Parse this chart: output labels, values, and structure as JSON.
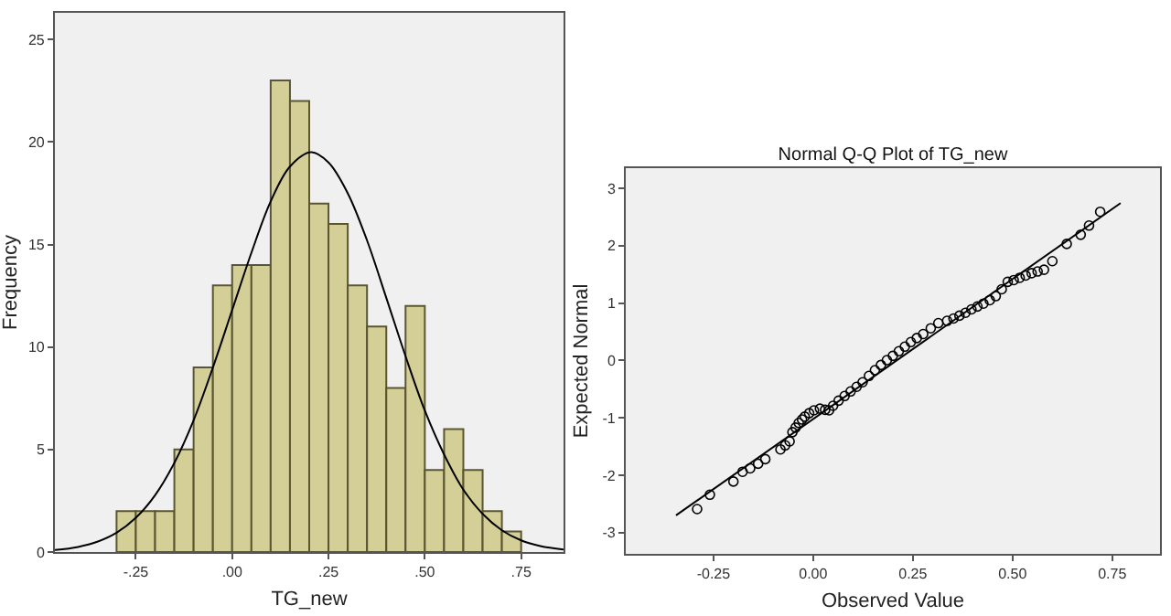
{
  "chart_data": [
    {
      "type": "histogram",
      "xlabel": "TG_new",
      "ylabel": "Frequency",
      "color": "#d3cf97",
      "bins": [
        -0.3,
        -0.25,
        -0.2,
        -0.15,
        -0.1,
        -0.05,
        0.0,
        0.05,
        0.1,
        0.15,
        0.2,
        0.25,
        0.3,
        0.35,
        0.4,
        0.45,
        0.5,
        0.55,
        0.6,
        0.65,
        0.7,
        0.75
      ],
      "values": [
        2,
        2,
        2,
        5,
        9,
        13,
        14,
        14,
        23,
        22,
        17,
        16,
        13,
        11,
        8,
        12,
        4,
        6,
        4,
        2,
        1
      ],
      "series": [
        {
          "type": "line",
          "color": "#000000",
          "x": [
            -0.46,
            -0.4,
            -0.35,
            -0.3,
            -0.25,
            -0.2,
            -0.15,
            -0.1,
            -0.05,
            0.0,
            0.05,
            0.1,
            0.15,
            0.205,
            0.25,
            0.3,
            0.35,
            0.4,
            0.45,
            0.5,
            0.55,
            0.6,
            0.65,
            0.7,
            0.75,
            0.8,
            0.86
          ],
          "values": [
            0.1,
            0.25,
            0.5,
            0.94,
            1.67,
            2.77,
            4.35,
            6.43,
            9.0,
            11.8,
            14.6,
            17.1,
            18.8,
            19.5,
            19.0,
            17.5,
            15.2,
            12.4,
            9.55,
            6.9,
            4.76,
            3.04,
            1.86,
            1.06,
            0.57,
            0.29,
            0.12
          ]
        }
      ],
      "xlim": [
        -0.46,
        0.86
      ],
      "ylim": [
        0,
        26.3
      ],
      "xticks": [
        {
          "value": -0.25,
          "label": "-.25"
        },
        {
          "value": 0,
          "label": ".00"
        },
        {
          "value": 0.25,
          "label": ".25"
        },
        {
          "value": 0.5,
          "label": ".50"
        },
        {
          "value": 0.75,
          "label": ".75"
        }
      ],
      "yticks": [
        0,
        5,
        10,
        15,
        20,
        25
      ]
    },
    {
      "type": "scatter",
      "title": "Normal Q-Q Plot of TG_new",
      "xlabel": "Observed Value",
      "ylabel": "Expected Normal",
      "series": [
        {
          "type": "scatter",
          "marker": "circle",
          "color": "#000000",
          "x": [
            -0.291,
            -0.259,
            -0.2,
            -0.177,
            -0.158,
            -0.138,
            -0.12,
            -0.082,
            -0.07,
            -0.059,
            -0.052,
            -0.044,
            -0.036,
            -0.028,
            -0.021,
            -0.01,
            0.002,
            0.017,
            0.03,
            0.04,
            0.05,
            0.064,
            0.079,
            0.094,
            0.109,
            0.124,
            0.14,
            0.155,
            0.17,
            0.185,
            0.2,
            0.215,
            0.23,
            0.245,
            0.26,
            0.276,
            0.295,
            0.314,
            0.336,
            0.352,
            0.367,
            0.382,
            0.397,
            0.412,
            0.427,
            0.443,
            0.458,
            0.473,
            0.488,
            0.503,
            0.518,
            0.533,
            0.548,
            0.563,
            0.579,
            0.6,
            0.636,
            0.671,
            0.692,
            0.72
          ],
          "values": [
            -2.59,
            -2.34,
            -2.11,
            -1.94,
            -1.88,
            -1.8,
            -1.72,
            -1.55,
            -1.48,
            -1.41,
            -1.25,
            -1.17,
            -1.09,
            -1.03,
            -0.98,
            -0.92,
            -0.87,
            -0.84,
            -0.86,
            -0.87,
            -0.79,
            -0.7,
            -0.62,
            -0.54,
            -0.46,
            -0.38,
            -0.27,
            -0.17,
            -0.08,
            0.005,
            0.08,
            0.16,
            0.24,
            0.32,
            0.39,
            0.46,
            0.56,
            0.65,
            0.69,
            0.73,
            0.78,
            0.83,
            0.89,
            0.94,
            0.99,
            1.05,
            1.12,
            1.24,
            1.37,
            1.4,
            1.44,
            1.48,
            1.52,
            1.55,
            1.58,
            1.73,
            2.03,
            2.19,
            2.35,
            2.59
          ]
        },
        {
          "type": "line",
          "color": "#000000",
          "x": [
            -0.344,
            0.771
          ],
          "values": [
            -2.7,
            2.74
          ]
        }
      ],
      "xlim": [
        -0.47,
        0.87
      ],
      "ylim": [
        -3.37,
        3.35
      ],
      "xticks": [
        {
          "value": -0.25,
          "label": "-0.25"
        },
        {
          "value": 0,
          "label": "0.00"
        },
        {
          "value": 0.25,
          "label": "0.25"
        },
        {
          "value": 0.5,
          "label": "0.50"
        },
        {
          "value": 0.75,
          "label": "0.75"
        }
      ],
      "yticks": [
        -3,
        -2,
        -1,
        0,
        1,
        2,
        3
      ]
    }
  ]
}
